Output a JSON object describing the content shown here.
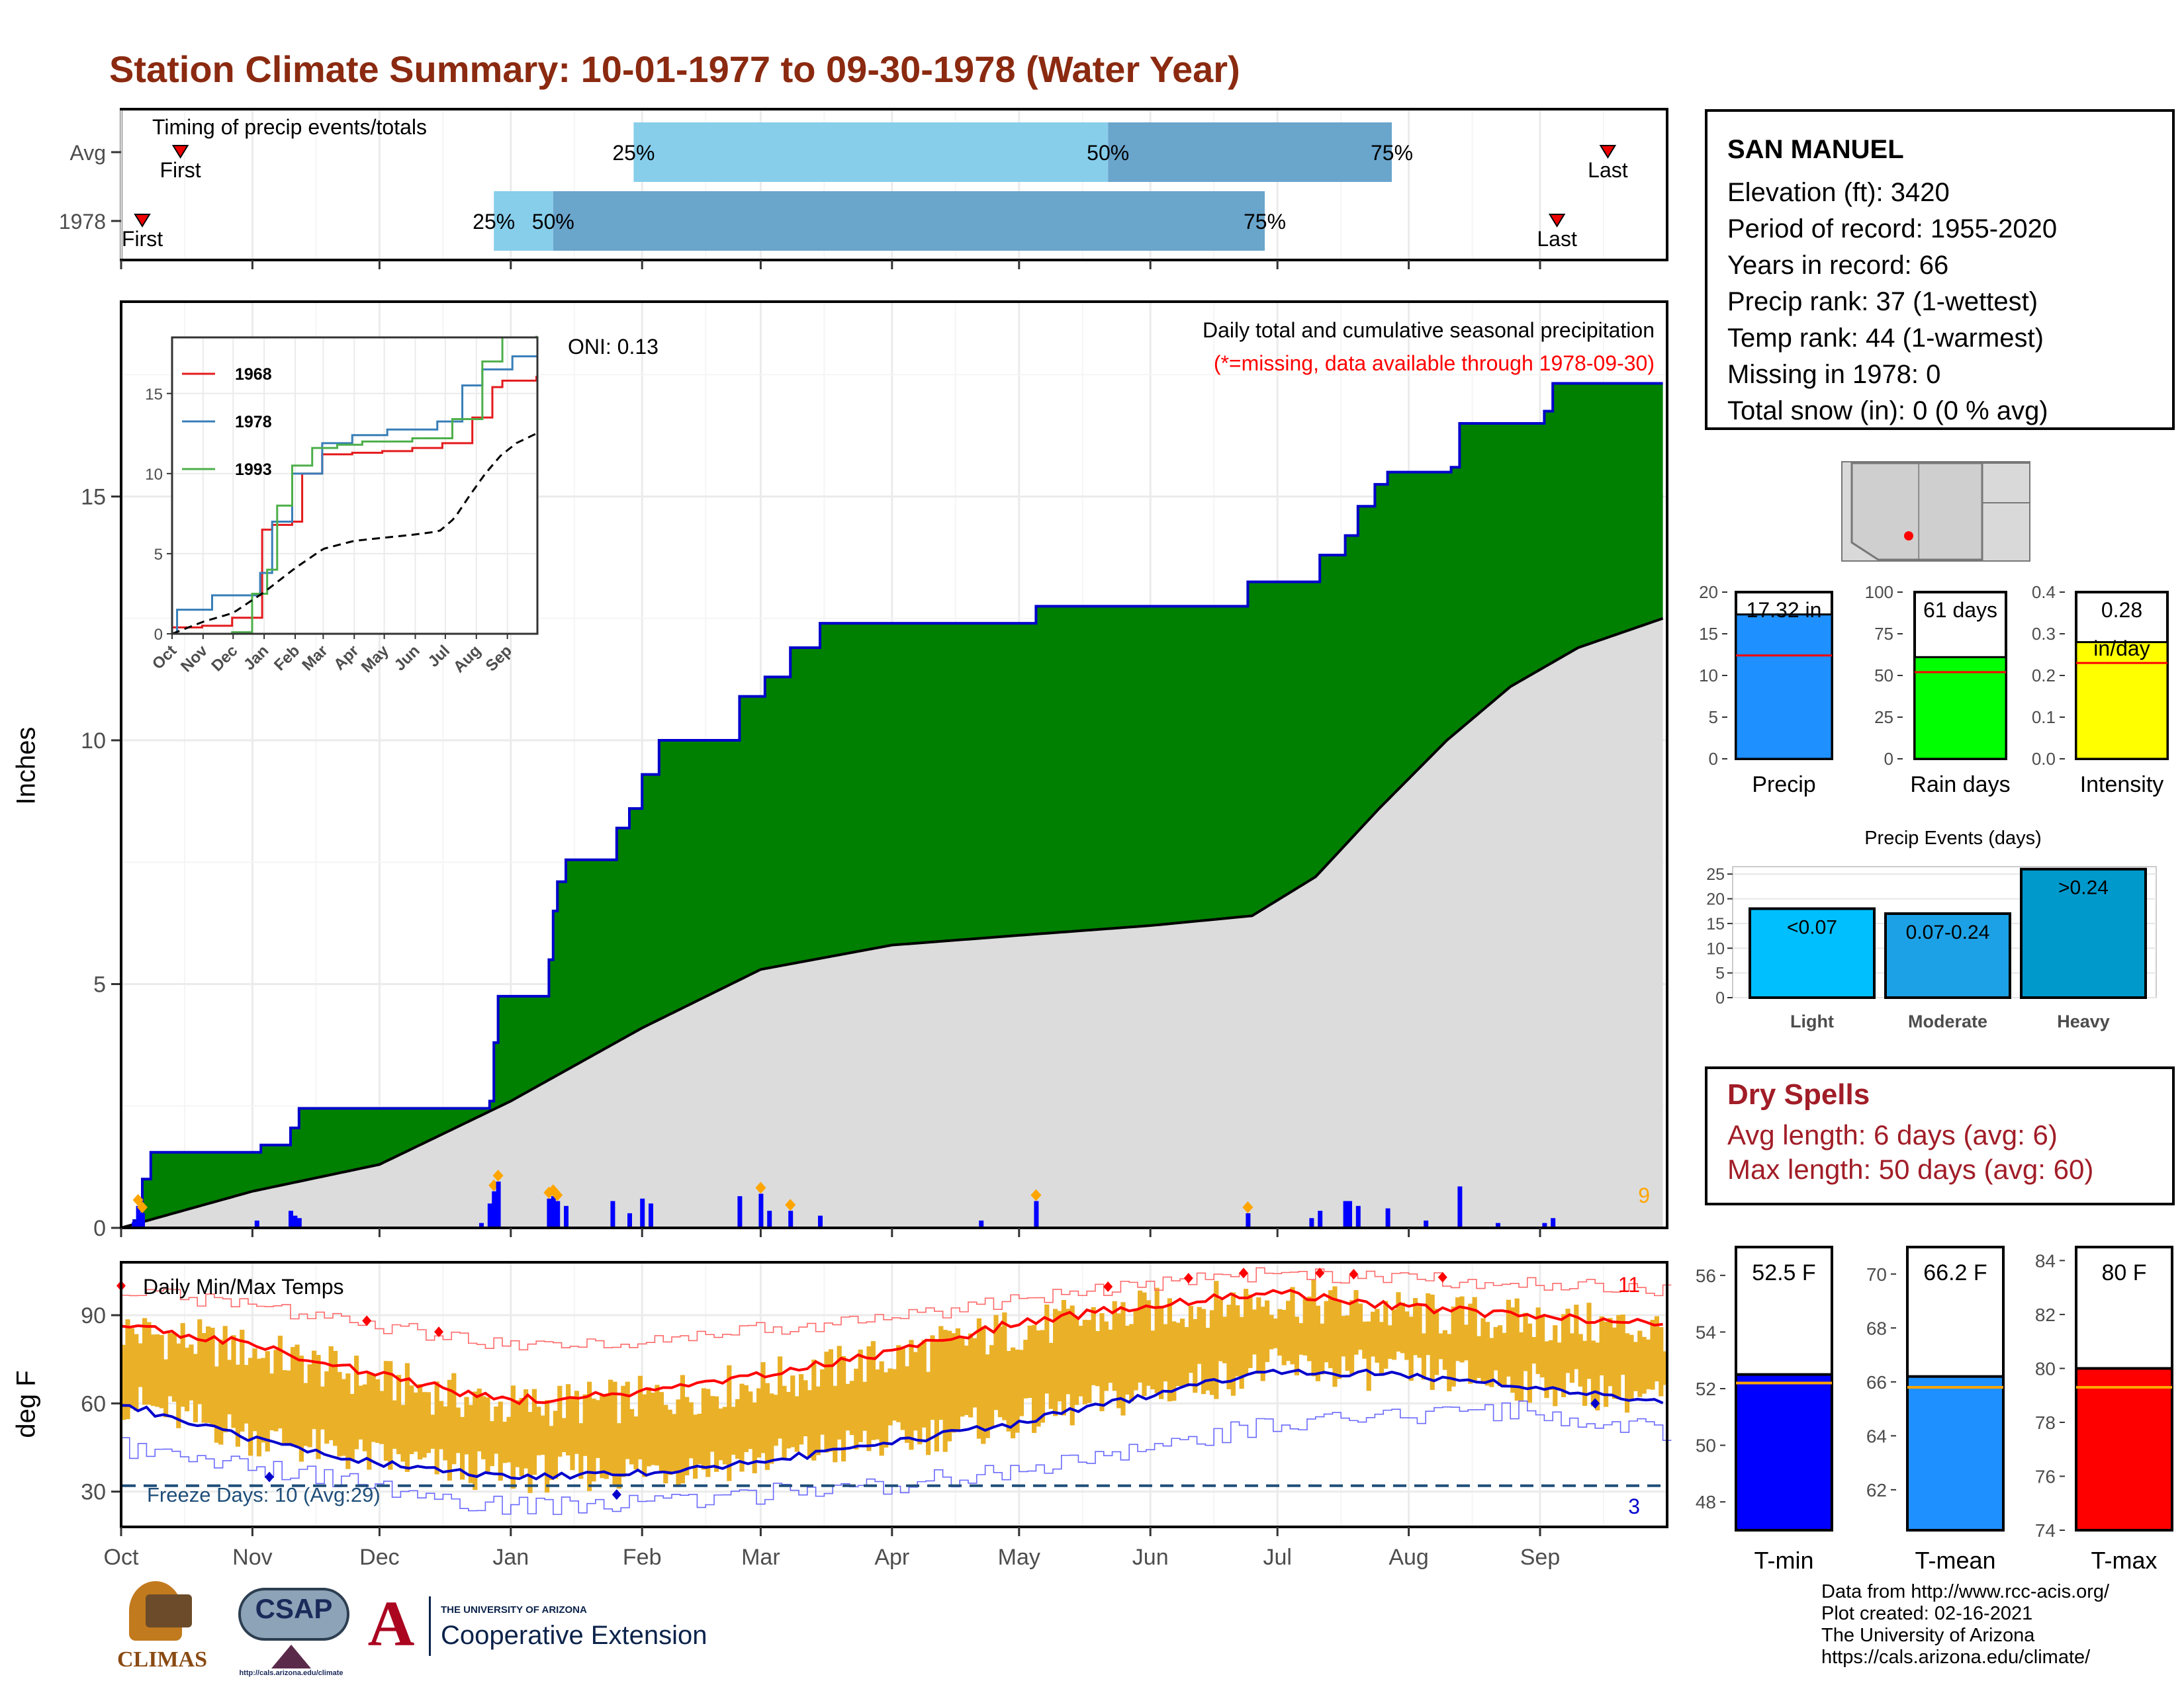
{
  "title": "Station Climate Summary: 10-01-1977 to 09-30-1978 (Water Year)",
  "colors": {
    "title": "#8b2a10",
    "precip_fill": "#008000",
    "precip_line": "#0000cc",
    "avg_fill": "#dcdcdc",
    "bar_blue": "#0000ff",
    "marker_orange": "#ffa500",
    "temp_band": "#eab128",
    "tmax_line": "#ff0000",
    "tmin_line": "#0000cc",
    "light_blue": "#87ceeb",
    "mid_blue": "#6aa5cc",
    "dry_red": "#a11d27"
  },
  "timing_panel": {
    "label": "Timing of precip events/totals",
    "rows": [
      {
        "name": "Avg",
        "first": "First",
        "last": "Last",
        "p25": "25%",
        "p50": "50%",
        "p75": "75%",
        "first_date": "1977-10-15",
        "q25_date": "1978-01-30",
        "q50_date": "1978-05-22",
        "q75_date": "1978-07-28",
        "last_date": "1978-09-17"
      },
      {
        "name": "1978",
        "first": "First",
        "last": "Last",
        "p25": "25%",
        "p50": "50%",
        "p75": "75%",
        "first_date": "1977-10-06",
        "q25_date": "1977-12-28",
        "q50_date": "1978-01-11",
        "q75_date": "1978-06-28",
        "last_date": "1978-09-05"
      }
    ]
  },
  "precip_panel": {
    "ylabel": "Inches",
    "header": "Daily total and cumulative seasonal precipitation",
    "note": "(*=missing, data available through 1978-09-30)",
    "oni": "ONI: 0.13",
    "count_label": "9"
  },
  "inset": {
    "x_ticks": [
      "Oct",
      "Nov",
      "Dec",
      "Jan",
      "Feb",
      "Mar",
      "Apr",
      "May",
      "Jun",
      "Jul",
      "Aug",
      "Sep"
    ],
    "y_ticks": [
      "0",
      "5",
      "10",
      "15"
    ],
    "legend": [
      {
        "name": "1968",
        "color": "#e41a1c"
      },
      {
        "name": "1978",
        "color": "#377eb8"
      },
      {
        "name": "1993",
        "color": "#4daf4a"
      }
    ]
  },
  "temp_panel": {
    "ylabel": "deg F",
    "label": "Daily Min/Max Temps",
    "freeze_label": "Freeze Days: 10 (Avg:29)",
    "hot_count": "11",
    "cold_count": "3",
    "y_ticks": [
      "30",
      "60",
      "90"
    ]
  },
  "months": [
    "Oct",
    "Nov",
    "Dec",
    "Jan",
    "Feb",
    "Mar",
    "Apr",
    "May",
    "Jun",
    "Jul",
    "Aug",
    "Sep"
  ],
  "station": {
    "name": "SAN MANUEL",
    "lines": [
      "Elevation (ft): 3420",
      "Period of record: 1955-2020",
      "Years in record: 66",
      "Precip rank: 37 (1-wettest)",
      "Temp rank: 44 (1-warmest)",
      "Missing in 1978: 0",
      "Total snow (in): 0 (0 % avg)"
    ]
  },
  "mini_bars": {
    "precip": {
      "label": "Precip",
      "value_text": "17.32 in",
      "value": 17.32,
      "avg": 12.4,
      "ymax": 20,
      "ticks": [
        "0",
        "5",
        "10",
        "15",
        "20"
      ],
      "color": "#1e90ff"
    },
    "rain_days": {
      "label": "Rain days",
      "value_text": "61 days",
      "value": 61,
      "avg": 52,
      "ymax": 100,
      "ticks": [
        "0",
        "25",
        "50",
        "75",
        "100"
      ],
      "color": "#00ff00"
    },
    "intensity": {
      "label": "Intensity",
      "value_text": "0.28",
      "value_text2": "in/day",
      "value": 0.28,
      "avg": 0.23,
      "ymax": 0.4,
      "ticks": [
        "0.0",
        "0.1",
        "0.2",
        "0.3",
        "0.4"
      ],
      "color": "#ffff00"
    }
  },
  "events": {
    "title": "Precip Events (days)",
    "ticks": [
      "0",
      "5",
      "10",
      "15",
      "20",
      "25"
    ],
    "bars": [
      {
        "cat": "Light",
        "label": "<0.07",
        "value": 18,
        "color": "#00bfff"
      },
      {
        "cat": "Moderate",
        "label": "0.07-0.24",
        "value": 17,
        "color": "#1da1e6"
      },
      {
        "cat": "Heavy",
        "label": ">0.24",
        "value": 26,
        "color": "#0099cc"
      }
    ]
  },
  "dry_spells": {
    "title": "Dry Spells",
    "avg": "Avg length: 6 days (avg: 6)",
    "max": "Max length: 50 days (avg: 60)"
  },
  "temp_bars": {
    "tmin": {
      "label": "T-min",
      "value_text": "52.5 F",
      "value": 52.5,
      "avg": 52.2,
      "ymin": 47,
      "ymax": 57,
      "ticks": [
        "48",
        "50",
        "52",
        "54",
        "56"
      ],
      "color": "#0000ff"
    },
    "tmean": {
      "label": "T-mean",
      "value_text": "66.2 F",
      "value": 66.2,
      "avg": 65.8,
      "ymin": 60.5,
      "ymax": 71,
      "ticks": [
        "62",
        "64",
        "66",
        "68",
        "70"
      ],
      "color": "#1e90ff"
    },
    "tmax": {
      "label": "T-max",
      "value_text": "80 F",
      "value": 80,
      "avg": 79.3,
      "ymin": 74,
      "ymax": 84.5,
      "ticks": [
        "74",
        "76",
        "78",
        "80",
        "82",
        "84"
      ],
      "color": "#ff0000"
    }
  },
  "credits": [
    "Data from http://www.rcc-acis.org/",
    "Plot created: 02-16-2021",
    "The University of Arizona",
    "https://cals.arizona.edu/climate/"
  ],
  "logos": {
    "climas": "CLIMAS",
    "csap": "CSAP",
    "csap_url": "http://cals.arizona.edu/climate",
    "ua_top": "THE UNIVERSITY OF ARIZONA",
    "ua_main": "Cooperative Extension"
  },
  "chart_data": [
    {
      "type": "area",
      "title": "Daily total and cumulative seasonal precipitation",
      "ylabel": "Inches",
      "ylim": [
        0,
        19
      ],
      "x": [
        "Oct",
        "Nov",
        "Dec",
        "Jan",
        "Feb",
        "Mar",
        "Apr",
        "May",
        "Jun",
        "Jul",
        "Aug",
        "Sep"
      ],
      "series": [
        {
          "name": "cumulative_1978_steps",
          "points": [
            [
              "1977-10-01",
              0.0
            ],
            [
              "1977-10-04",
              0.15
            ],
            [
              "1977-10-06",
              1.0
            ],
            [
              "1977-10-08",
              1.55
            ],
            [
              "1977-11-01",
              1.55
            ],
            [
              "1977-11-03",
              1.7
            ],
            [
              "1977-11-10",
              2.05
            ],
            [
              "1977-11-12",
              2.45
            ],
            [
              "1977-12-26",
              2.45
            ],
            [
              "1977-12-27",
              2.6
            ],
            [
              "1977-12-28",
              3.8
            ],
            [
              "1977-12-29",
              4.75
            ],
            [
              "1978-01-09",
              4.75
            ],
            [
              "1978-01-10",
              5.5
            ],
            [
              "1978-01-11",
              6.5
            ],
            [
              "1978-01-12",
              7.1
            ],
            [
              "1978-01-14",
              7.55
            ],
            [
              "1978-01-23",
              7.55
            ],
            [
              "1978-01-26",
              8.2
            ],
            [
              "1978-01-29",
              8.6
            ],
            [
              "1978-02-01",
              9.3
            ],
            [
              "1978-02-05",
              10.0
            ],
            [
              "1978-02-20",
              10.0
            ],
            [
              "1978-02-24",
              10.9
            ],
            [
              "1978-03-02",
              11.3
            ],
            [
              "1978-03-08",
              11.9
            ],
            [
              "1978-03-12",
              11.9
            ],
            [
              "1978-03-15",
              12.4
            ],
            [
              "1978-05-04",
              12.4
            ],
            [
              "1978-05-05",
              12.75
            ],
            [
              "1978-06-23",
              12.75
            ],
            [
              "1978-06-24",
              13.25
            ],
            [
              "1978-07-09",
              13.25
            ],
            [
              "1978-07-11",
              13.8
            ],
            [
              "1978-07-17",
              14.2
            ],
            [
              "1978-07-20",
              14.8
            ],
            [
              "1978-07-24",
              15.25
            ],
            [
              "1978-07-27",
              15.5
            ],
            [
              "1978-08-05",
              15.5
            ],
            [
              "1978-08-11",
              15.6
            ],
            [
              "1978-08-13",
              16.5
            ],
            [
              "1978-08-31",
              16.5
            ],
            [
              "1978-09-02",
              16.75
            ],
            [
              "1978-09-04",
              17.32
            ],
            [
              "1978-09-30",
              17.32
            ]
          ]
        },
        {
          "name": "average_cumulative",
          "points": [
            [
              "1977-10-01",
              0.0
            ],
            [
              "1977-11-01",
              0.75
            ],
            [
              "1977-12-01",
              1.3
            ],
            [
              "1978-01-01",
              2.6
            ],
            [
              "1978-02-01",
              4.1
            ],
            [
              "1978-03-01",
              5.3
            ],
            [
              "1978-04-01",
              5.8
            ],
            [
              "1978-05-01",
              6.0
            ],
            [
              "1978-06-01",
              6.2
            ],
            [
              "1978-06-25",
              6.4
            ],
            [
              "1978-07-10",
              7.2
            ],
            [
              "1978-07-25",
              8.6
            ],
            [
              "1978-08-10",
              10.0
            ],
            [
              "1978-08-25",
              11.1
            ],
            [
              "1978-09-10",
              11.9
            ],
            [
              "1978-09-30",
              12.5
            ]
          ]
        },
        {
          "name": "daily_precip",
          "points": [
            [
              "1977-10-04",
              0.12
            ],
            [
              "1977-10-05",
              0.45
            ],
            [
              "1977-10-06",
              0.3
            ],
            [
              "1977-11-02",
              0.15
            ],
            [
              "1977-11-10",
              0.35
            ],
            [
              "1977-11-11",
              0.25
            ],
            [
              "1977-11-12",
              0.2
            ],
            [
              "1977-12-25",
              0.1
            ],
            [
              "1977-12-27",
              0.5
            ],
            [
              "1977-12-28",
              0.75
            ],
            [
              "1977-12-29",
              0.95
            ],
            [
              "1978-01-10",
              0.6
            ],
            [
              "1978-01-11",
              0.65
            ],
            [
              "1978-01-12",
              0.55
            ],
            [
              "1978-01-14",
              0.45
            ],
            [
              "1978-01-25",
              0.55
            ],
            [
              "1978-01-29",
              0.3
            ],
            [
              "1978-02-01",
              0.6
            ],
            [
              "1978-02-03",
              0.5
            ],
            [
              "1978-02-24",
              0.65
            ],
            [
              "1978-03-01",
              0.7
            ],
            [
              "1978-03-03",
              0.35
            ],
            [
              "1978-03-08",
              0.35
            ],
            [
              "1978-03-15",
              0.25
            ],
            [
              "1978-04-22",
              0.15
            ],
            [
              "1978-05-05",
              0.55
            ],
            [
              "1978-06-24",
              0.3
            ],
            [
              "1978-07-09",
              0.2
            ],
            [
              "1978-07-11",
              0.35
            ],
            [
              "1978-07-17",
              0.55
            ],
            [
              "1978-07-18",
              0.55
            ],
            [
              "1978-07-20",
              0.45
            ],
            [
              "1978-07-27",
              0.4
            ],
            [
              "1978-08-05",
              0.15
            ],
            [
              "1978-08-13",
              0.85
            ],
            [
              "1978-08-22",
              0.1
            ],
            [
              "1978-09-02",
              0.1
            ],
            [
              "1978-09-04",
              0.2
            ]
          ]
        }
      ]
    },
    {
      "type": "line",
      "title": "Daily Min/Max Temps",
      "ylabel": "deg F",
      "ylim": [
        18,
        108
      ],
      "x": [
        "Oct",
        "Nov",
        "Dec",
        "Jan",
        "Feb",
        "Mar",
        "Apr",
        "May",
        "Jun",
        "Jul",
        "Aug",
        "Sep"
      ],
      "freeze_line": 32,
      "series": [
        {
          "name": "avg_max",
          "points": [
            [
              0,
              87
            ],
            [
              30,
              80
            ],
            [
              60,
              70
            ],
            [
              90,
              61
            ],
            [
              120,
              63
            ],
            [
              150,
              69
            ],
            [
              180,
              77
            ],
            [
              210,
              87
            ],
            [
              240,
              93
            ],
            [
              270,
              98
            ],
            [
              300,
              93
            ],
            [
              330,
              90
            ],
            [
              364,
              87
            ]
          ]
        },
        {
          "name": "avg_min",
          "points": [
            [
              0,
              60
            ],
            [
              30,
              48
            ],
            [
              60,
              40
            ],
            [
              90,
              35
            ],
            [
              120,
              36
            ],
            [
              150,
              40
            ],
            [
              180,
              46
            ],
            [
              210,
              53
            ],
            [
              240,
              62
            ],
            [
              270,
              71
            ],
            [
              300,
              70
            ],
            [
              330,
              66
            ],
            [
              364,
              61
            ]
          ]
        },
        {
          "name": "record_max",
          "points": [
            [
              0,
              99
            ],
            [
              45,
              90
            ],
            [
              90,
              80
            ],
            [
              120,
              81
            ],
            [
              180,
              89
            ],
            [
              240,
              100
            ],
            [
              270,
              104
            ],
            [
              330,
              101
            ],
            [
              364,
              99
            ]
          ]
        },
        {
          "name": "record_min",
          "points": [
            [
              0,
              45
            ],
            [
              45,
              35
            ],
            [
              90,
              25
            ],
            [
              120,
              26
            ],
            [
              180,
              32
            ],
            [
              240,
              43
            ],
            [
              270,
              53
            ],
            [
              330,
              58
            ],
            [
              364,
              50
            ]
          ]
        }
      ]
    }
  ]
}
